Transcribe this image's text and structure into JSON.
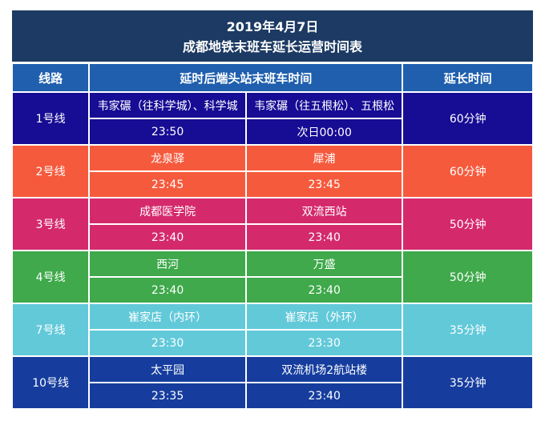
{
  "title": {
    "line1": "2019年4月7日",
    "line2": "成都地铁末班车延长运营时间表"
  },
  "headers": {
    "line": "线路",
    "time": "延时后端头站末班车时间",
    "extend": "延长时间"
  },
  "rows": [
    {
      "line": "1号线",
      "stationA": "韦家碾（往科学城）、科学城",
      "stationB": "韦家碾（往五根松）、五根松",
      "timeA": "23:50",
      "timeB": "次日00:00",
      "extend": "60分钟",
      "color": "#170c94"
    },
    {
      "line": "2号线",
      "stationA": "龙泉驿",
      "stationB": "犀浦",
      "timeA": "23:45",
      "timeB": "23:45",
      "extend": "60分钟",
      "color": "#f65a3d"
    },
    {
      "line": "3号线",
      "stationA": "成都医学院",
      "stationB": "双流西站",
      "timeA": "23:40",
      "timeB": "23:40",
      "extend": "50分钟",
      "color": "#d42a6c"
    },
    {
      "line": "4号线",
      "stationA": "西河",
      "stationB": "万盛",
      "timeA": "23:40",
      "timeB": "23:40",
      "extend": "50分钟",
      "color": "#3fa94b"
    },
    {
      "line": "7号线",
      "stationA": "崔家店（内环）",
      "stationB": "崔家店（外环）",
      "timeA": "23:30",
      "timeB": "23:30",
      "extend": "35分钟",
      "color": "#62c9d9"
    },
    {
      "line": "10号线",
      "stationA": "太平园",
      "stationB": "双流机场2航站楼",
      "timeA": "23:35",
      "timeB": "23:40",
      "extend": "35分钟",
      "color": "#163d9e"
    }
  ],
  "colors": {
    "title_bg": "#1c3a63",
    "header_bg": "#1f5fae"
  }
}
